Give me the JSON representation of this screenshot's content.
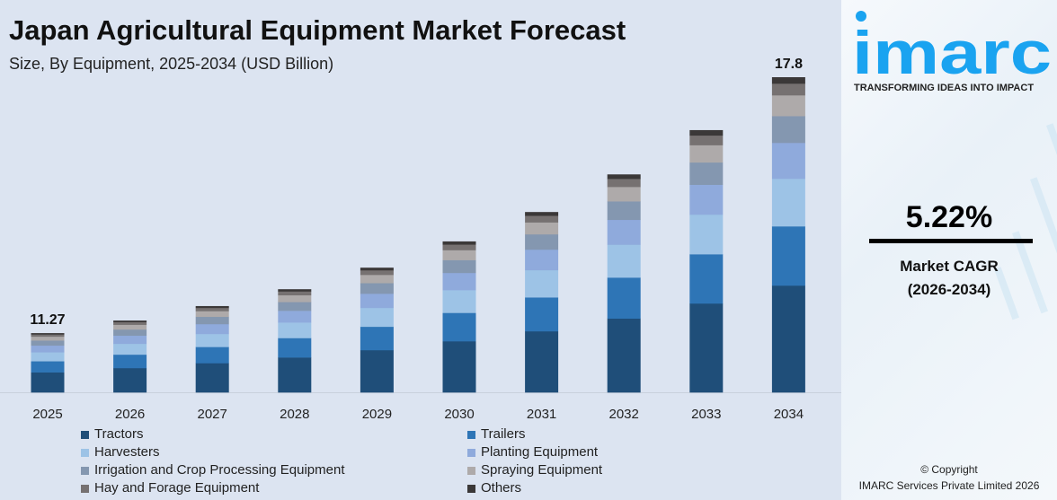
{
  "header": {
    "title": "Japan Agricultural Equipment Market Forecast",
    "subtitle": "Size, By Equipment, 2025-2034 (USD Billion)"
  },
  "sidebar": {
    "logo_text": "imarc",
    "tagline": "TRANSFORMING IDEAS INTO IMPACT",
    "cagr_value": "5.22%",
    "cagr_label": "Market CAGR",
    "cagr_period": "(2026-2034)",
    "copyright": "© Copyright",
    "company": "IMARC Services Private Limited 2026",
    "brand_color": "#1aa3f0"
  },
  "chart_data": {
    "type": "bar",
    "stacked": true,
    "title": "Japan Agricultural Equipment Market Forecast",
    "subtitle": "Size, By Equipment, 2025-2034 (USD Billion)",
    "categories": [
      "2025",
      "2026",
      "2027",
      "2028",
      "2029",
      "2030",
      "2031",
      "2032",
      "2033",
      "2034"
    ],
    "totals": [
      11.27,
      11.59,
      11.96,
      12.39,
      12.94,
      13.61,
      14.36,
      15.32,
      16.45,
      17.8
    ],
    "data_labels": {
      "0": "11.27",
      "9": "17.8"
    },
    "ylim": [
      9.76,
      18
    ],
    "grid": false,
    "legend_position": "bottom",
    "series": [
      {
        "name": "Tractors",
        "color": "#1f4e79",
        "share": 0.339
      },
      {
        "name": "Trailers",
        "color": "#2e75b6",
        "share": 0.188
      },
      {
        "name": "Harvesters",
        "color": "#9dc3e6",
        "share": 0.151
      },
      {
        "name": "Planting Equipment",
        "color": "#8faadc",
        "share": 0.114
      },
      {
        "name": "Irrigation and Crop Processing Equipment",
        "color": "#8497b0",
        "share": 0.085
      },
      {
        "name": "Spraying Equipment",
        "color": "#aeaaaa",
        "share": 0.066
      },
      {
        "name": "Hay and Forage Equipment",
        "color": "#767171",
        "share": 0.037
      },
      {
        "name": "Others",
        "color": "#3b3838",
        "share": 0.02
      }
    ]
  }
}
